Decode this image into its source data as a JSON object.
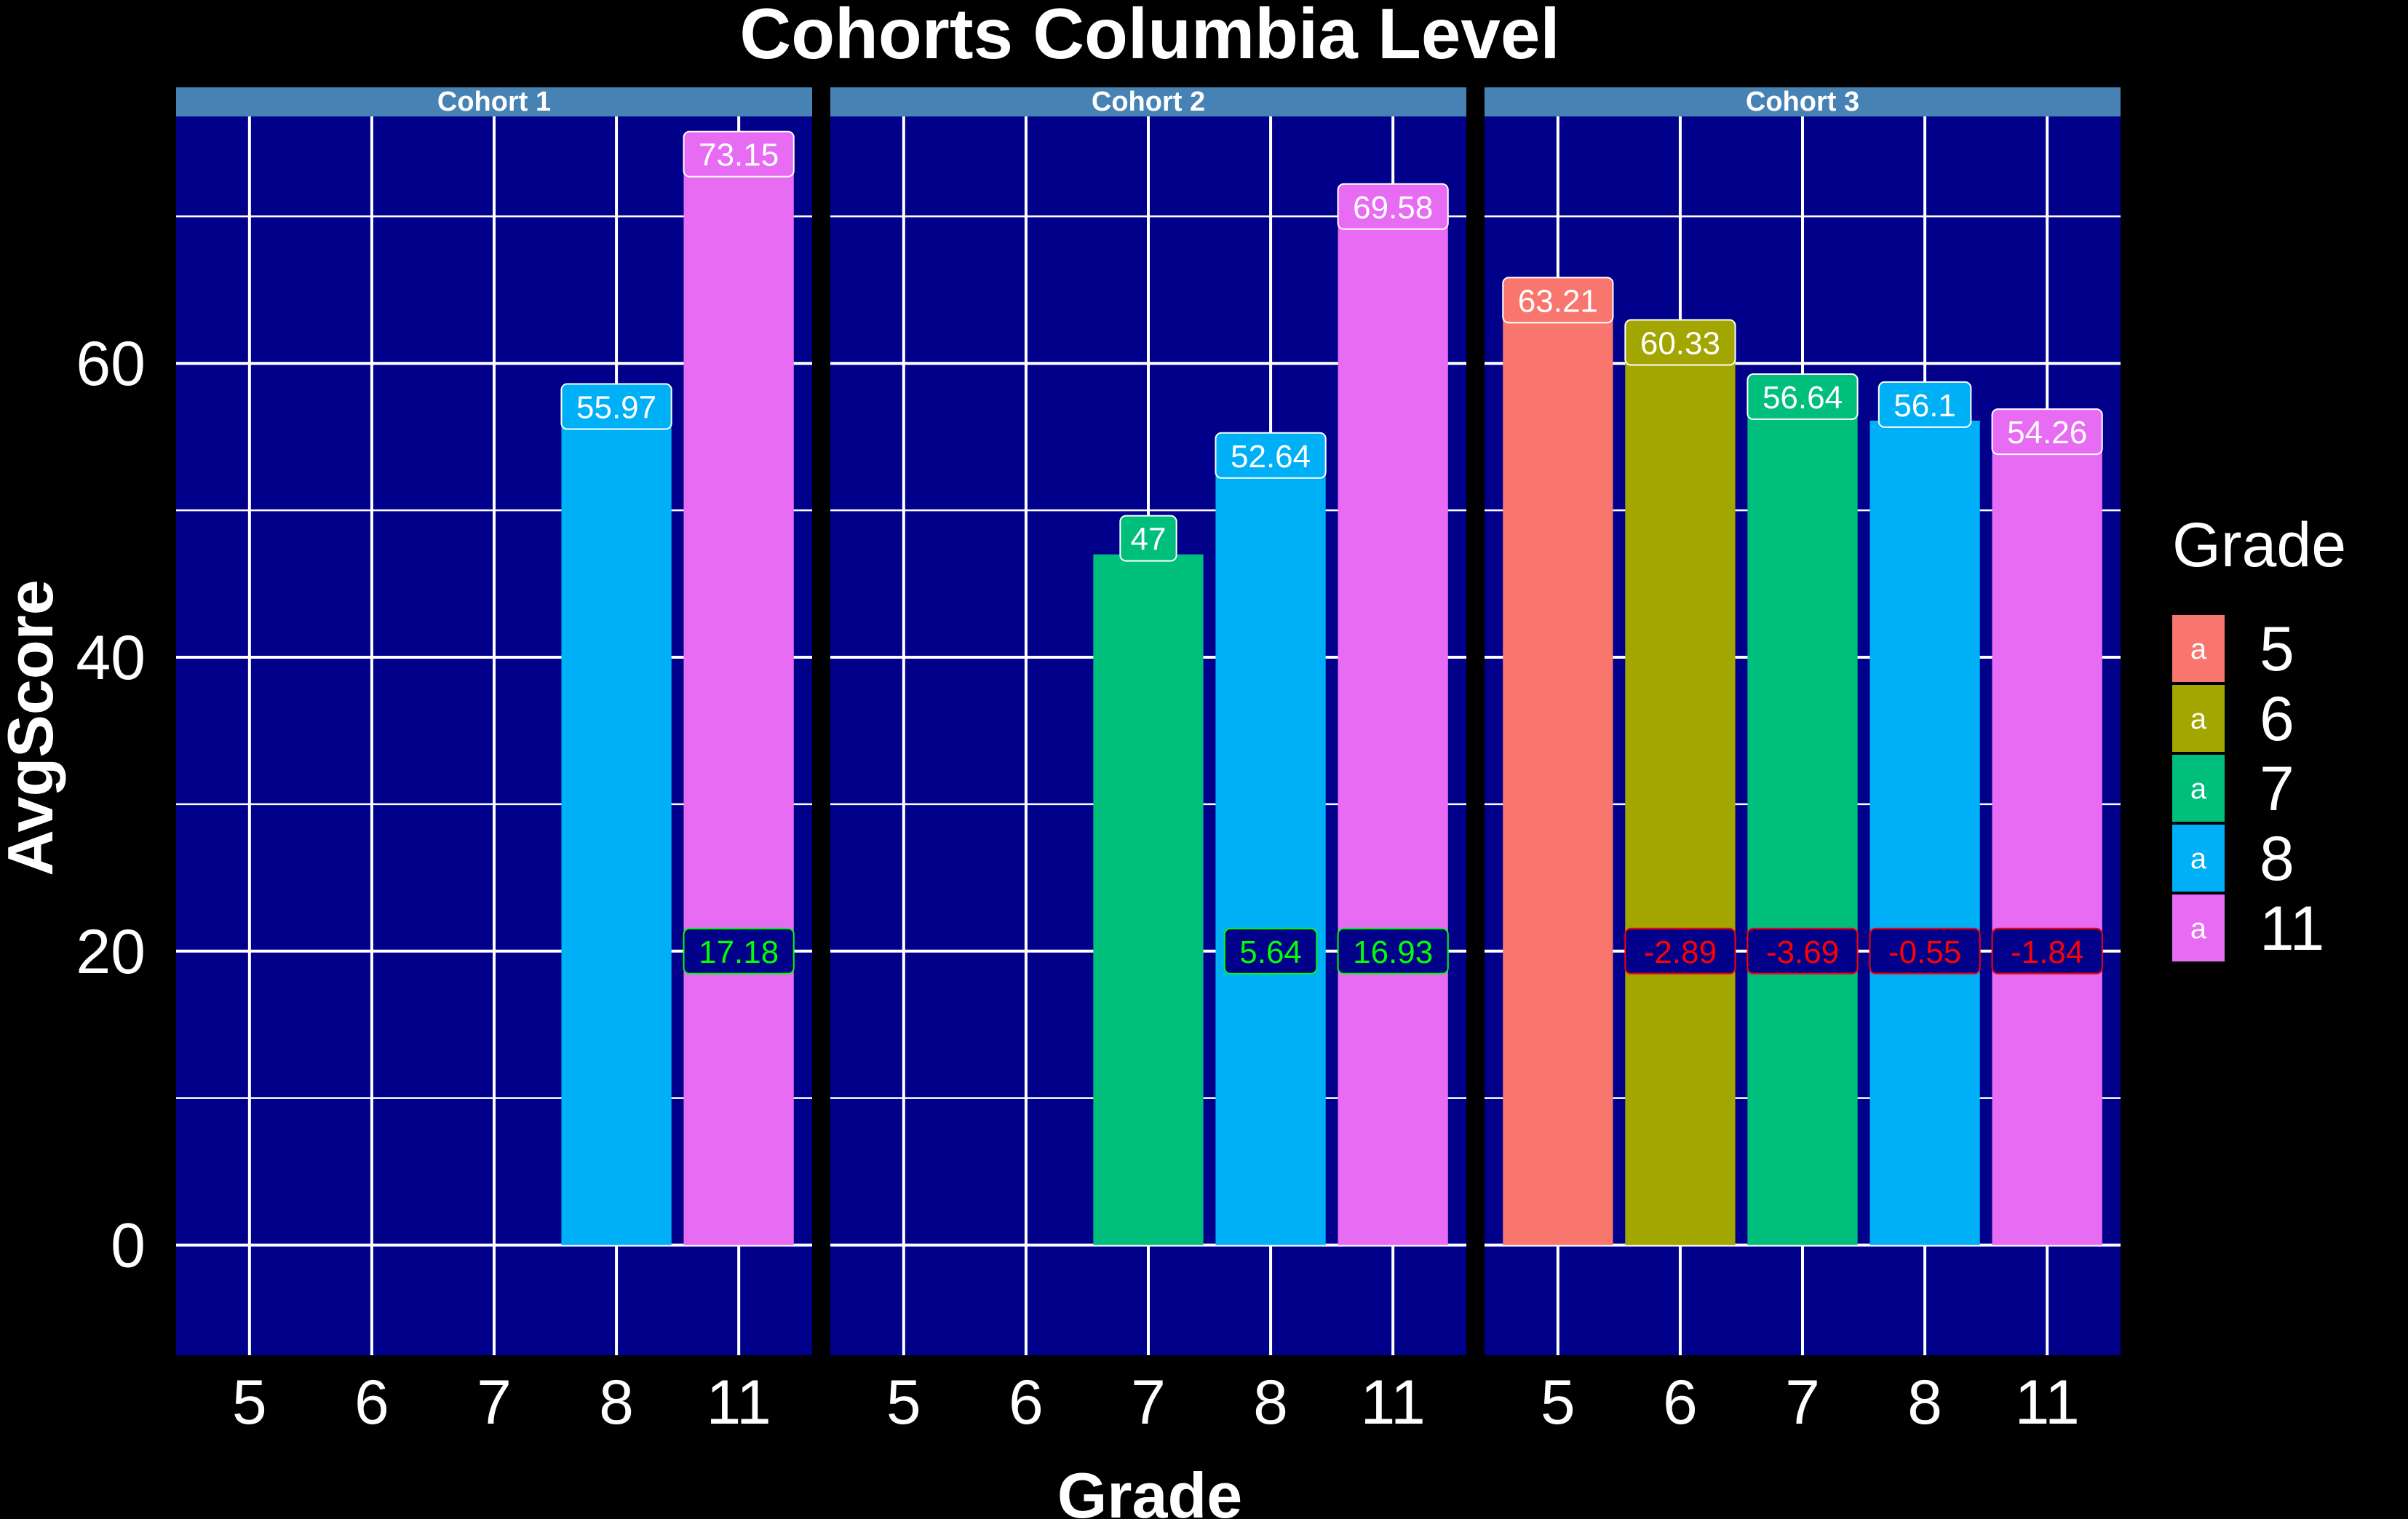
{
  "chart_data": {
    "type": "bar",
    "title": "Cohorts Columbia Level",
    "xlabel": "Grade",
    "ylabel": "AvgScore",
    "ylim": [
      -7.5,
      76.8
    ],
    "yticks": [
      0,
      20,
      40,
      60
    ],
    "grid": true,
    "categories": [
      "5",
      "6",
      "7",
      "8",
      "11"
    ],
    "colors": {
      "5": "#F8766D",
      "6": "#A3A500",
      "7": "#00BF7D",
      "8": "#00B0F6",
      "11": "#E76BF3"
    },
    "theme": {
      "background": "#000000",
      "panel": "#00008B",
      "strip": "#4682B4",
      "grid": "#ffffff",
      "positive_change": "#00FF00",
      "negative_change": "#FF0000"
    },
    "label_y": 20,
    "facets": [
      {
        "name": "Cohort 1",
        "bars": [
          {
            "grade": "8",
            "value": 55.97,
            "label": "55.97"
          },
          {
            "grade": "11",
            "value": 73.15,
            "label": "73.15",
            "change": "17.18",
            "change_sign": "positive"
          }
        ]
      },
      {
        "name": "Cohort 2",
        "bars": [
          {
            "grade": "7",
            "value": 47,
            "label": "47"
          },
          {
            "grade": "8",
            "value": 52.64,
            "label": "52.64",
            "change": "5.64",
            "change_sign": "positive"
          },
          {
            "grade": "11",
            "value": 69.58,
            "label": "69.58",
            "change": "16.93",
            "change_sign": "positive"
          }
        ]
      },
      {
        "name": "Cohort 3",
        "bars": [
          {
            "grade": "5",
            "value": 63.21,
            "label": "63.21"
          },
          {
            "grade": "6",
            "value": 60.33,
            "label": "60.33",
            "change": "-2.89",
            "change_sign": "negative"
          },
          {
            "grade": "7",
            "value": 56.64,
            "label": "56.64",
            "change": "-3.69",
            "change_sign": "negative"
          },
          {
            "grade": "8",
            "value": 56.1,
            "label": "56.1",
            "change": "-0.55",
            "change_sign": "negative"
          },
          {
            "grade": "11",
            "value": 54.26,
            "label": "54.26",
            "change": "-1.84",
            "change_sign": "negative"
          }
        ]
      }
    ],
    "legend": {
      "title": "Grade",
      "position": "right",
      "key_glyph": "a",
      "entries": [
        "5",
        "6",
        "7",
        "8",
        "11"
      ]
    }
  }
}
